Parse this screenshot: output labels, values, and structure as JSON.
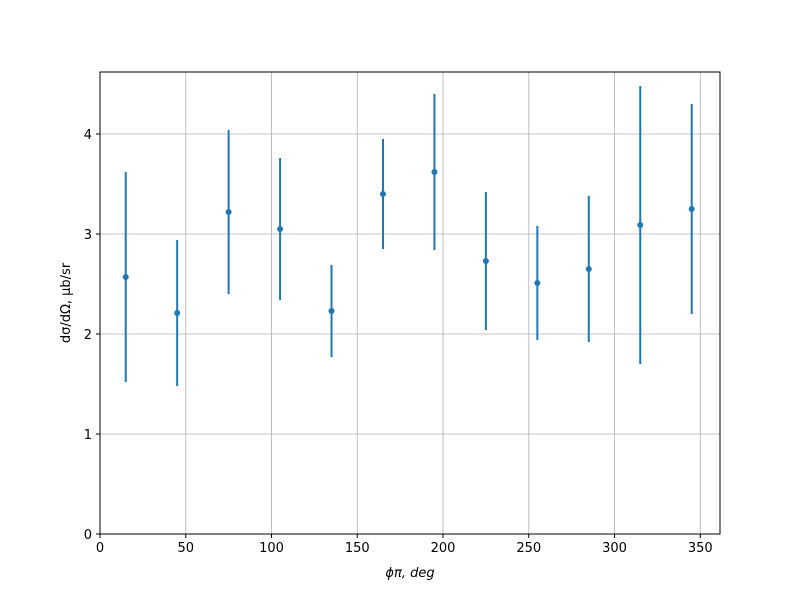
{
  "chart_data": {
    "type": "errorbar",
    "xlabel": "ϕπ, deg",
    "ylabel": "dσ/dΩ, μb/sr",
    "x": [
      15,
      45,
      75,
      105,
      135,
      165,
      195,
      225,
      255,
      285,
      315,
      345
    ],
    "series": [
      {
        "color": "#1f77b4",
        "values": [
          2.57,
          2.21,
          3.22,
          3.05,
          2.23,
          3.4,
          3.62,
          2.73,
          2.51,
          2.65,
          3.09,
          3.25
        ],
        "errors": [
          1.05,
          0.73,
          0.82,
          0.71,
          0.46,
          0.55,
          0.78,
          0.69,
          0.57,
          0.73,
          1.39,
          1.05
        ]
      }
    ],
    "xlim": [
      0,
      361.5
    ],
    "ylim": [
      0,
      4.62
    ],
    "xticks": [
      0,
      50,
      100,
      150,
      200,
      250,
      300,
      350
    ],
    "yticks": [
      0,
      1,
      2,
      3,
      4
    ],
    "grid": true
  }
}
